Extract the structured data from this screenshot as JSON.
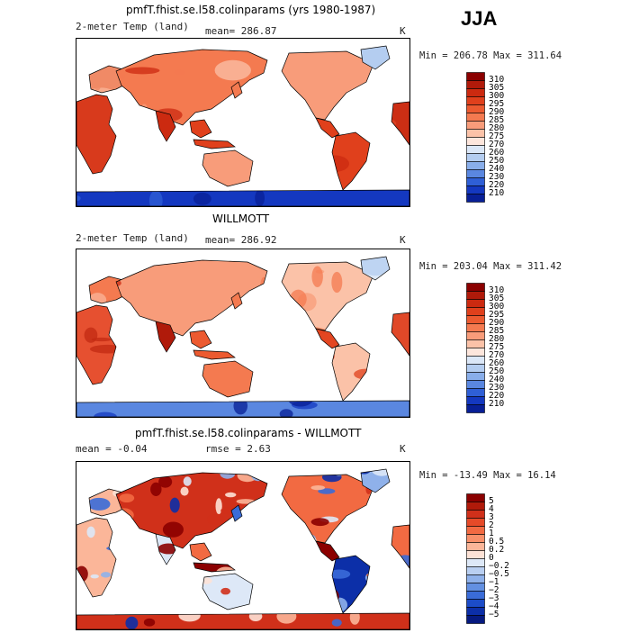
{
  "season": "JJA",
  "panels": [
    {
      "title": "pmfT.fhist.se.l58.colinparams (yrs 1980-1987)",
      "left": "2-meter Temp (land)",
      "mid": "mean= 286.87",
      "unit": "K",
      "minmax": "Min = 206.78 Max = 311.64",
      "palette": "abs",
      "levels": [
        "310",
        "305",
        "300",
        "295",
        "290",
        "285",
        "280",
        "275",
        "270",
        "260",
        "250",
        "240",
        "230",
        "220",
        "210"
      ]
    },
    {
      "title": "WILLMOTT",
      "left": "2-meter Temp (land)",
      "mid": "mean= 286.92",
      "unit": "K",
      "minmax": "Min = 203.04 Max = 311.42",
      "palette": "abs",
      "levels": [
        "310",
        "305",
        "300",
        "295",
        "290",
        "285",
        "280",
        "275",
        "270",
        "260",
        "250",
        "240",
        "230",
        "220",
        "210"
      ]
    },
    {
      "title": "pmfT.fhist.se.l58.colinparams - WILLMOTT",
      "left": "mean =   -0.04",
      "mid": "rmse =    2.63",
      "unit": "K",
      "minmax": "Min = -13.49 Max =   16.14",
      "palette": "diff",
      "levels": [
        "5",
        "4",
        "3",
        "2",
        "1",
        "0.5",
        "0.2",
        "0",
        "−0.2",
        "−0.5",
        "−1",
        "−2",
        "−3",
        "−4",
        "−5"
      ]
    }
  ],
  "colors": {
    "abs": [
      "#8b0000",
      "#b01a0a",
      "#cc2a10",
      "#e0401c",
      "#ec5a30",
      "#f47a50",
      "#f89c7a",
      "#fbc2a8",
      "#fde6dc",
      "#dbe7f7",
      "#b4cdf0",
      "#89aeea",
      "#5a87e0",
      "#2f5fd6",
      "#1438c0",
      "#081f96"
    ],
    "diff": [
      "#8b0000",
      "#b01a0a",
      "#d0301a",
      "#e64a28",
      "#f26a42",
      "#f8906a",
      "#fbb699",
      "#fde2d6",
      "#dde8f7",
      "#b9cff1",
      "#8fb1ea",
      "#6390e2",
      "#3a6cd8",
      "#1c4cc8",
      "#0c2fa8",
      "#061a80"
    ]
  }
}
